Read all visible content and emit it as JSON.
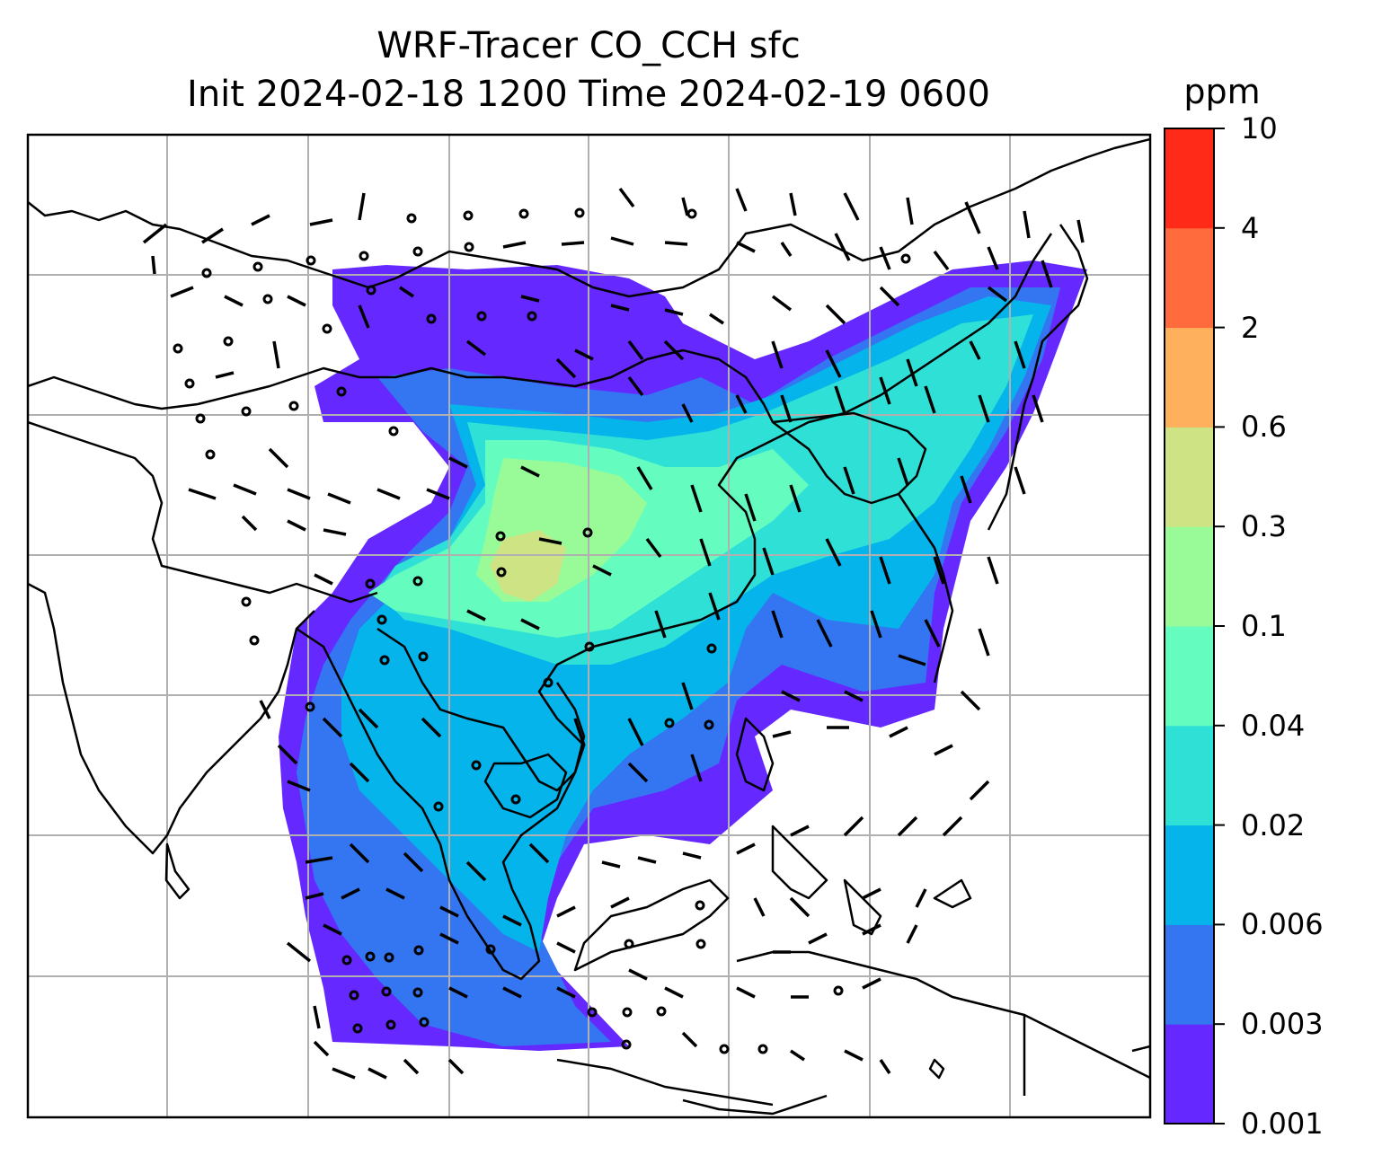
{
  "title": {
    "line1": "WRF-Tracer CO_CCH sfc",
    "line2": "Init 2024-02-18 1200 Time 2024-02-19 0600"
  },
  "colorbar": {
    "unit": "ppm",
    "levels": [
      "0.001",
      "0.003",
      "0.006",
      "0.02",
      "0.04",
      "0.1",
      "0.3",
      "0.6",
      "2",
      "4",
      "10"
    ],
    "colors": [
      "#6528ff",
      "#3476f2",
      "#04b4ea",
      "#2ee0d6",
      "#64fcbf",
      "#99fb98",
      "#cde384",
      "#ffb05d",
      "#ff6b3c",
      "#ff2a18"
    ]
  },
  "map": {
    "field_colors": {
      "land_outline": "#000000",
      "gridline": "#b0b0b0",
      "wind_barb": "#000000"
    }
  }
}
